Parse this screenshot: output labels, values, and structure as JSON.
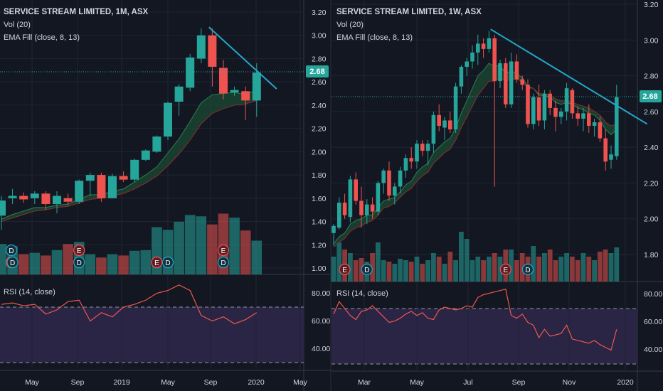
{
  "panels": [
    {
      "title": "SERVICE STREAM LIMITED, 1M, ASX",
      "vol_label": "Vol (20)",
      "ema_label": "EMA Fill (close, 8, 13)",
      "rsi_label": "RSI (14, close)",
      "price_label": "2.68",
      "price_ticks": [
        "3.20",
        "3.00",
        "2.80",
        "2.60",
        "2.40",
        "2.20",
        "2.00",
        "1.80",
        "1.60",
        "1.40",
        "1.20",
        "1.00"
      ],
      "rsi_ticks": [
        "80.00",
        "60.00",
        "40.00"
      ],
      "time_ticks": [
        "May",
        "Sep",
        "2019",
        "May",
        "Sep",
        "2020",
        "May"
      ]
    },
    {
      "title": "SERVICE STREAM LIMITED, 1W, ASX",
      "vol_label": "Vol (20)",
      "ema_label": "EMA Fill (close, 8, 13)",
      "rsi_label": "RSI (14, close)",
      "price_label": "2.68",
      "price_ticks": [
        "3.20",
        "3.00",
        "2.80",
        "2.60",
        "2.40",
        "2.20",
        "2.00",
        "1.80"
      ],
      "rsi_ticks": [
        "80.00",
        "60.00",
        "40.00"
      ],
      "time_ticks": [
        "Mar",
        "May",
        "Jul",
        "Sep",
        "Nov",
        "2020"
      ]
    }
  ],
  "colors": {
    "background": "#131722",
    "up": "#26a69a",
    "down": "#ef5350",
    "trendline": "#22a7c8",
    "rsi_line": "#f0584c",
    "rsi_band": "#2a2445",
    "price_label_bg": "#26a69a",
    "text": "#d1d4dc",
    "grid": "#1f2432"
  },
  "chart_data": [
    {
      "type": "candlestick",
      "title": "SERVICE STREAM LIMITED, 1M, ASX",
      "interval": "1M",
      "ylim": [
        0.9,
        3.25
      ],
      "candles": [
        {
          "o": 1.45,
          "h": 1.62,
          "l": 1.33,
          "c": 1.58
        },
        {
          "o": 1.6,
          "h": 1.68,
          "l": 1.55,
          "c": 1.62
        },
        {
          "o": 1.62,
          "h": 1.65,
          "l": 1.56,
          "c": 1.59
        },
        {
          "o": 1.6,
          "h": 1.66,
          "l": 1.55,
          "c": 1.64
        },
        {
          "o": 1.64,
          "h": 1.66,
          "l": 1.5,
          "c": 1.55
        },
        {
          "o": 1.55,
          "h": 1.66,
          "l": 1.47,
          "c": 1.62
        },
        {
          "o": 1.6,
          "h": 1.64,
          "l": 1.54,
          "c": 1.57
        },
        {
          "o": 1.57,
          "h": 1.76,
          "l": 1.55,
          "c": 1.75
        },
        {
          "o": 1.75,
          "h": 1.82,
          "l": 1.62,
          "c": 1.8
        },
        {
          "o": 1.8,
          "h": 1.82,
          "l": 1.57,
          "c": 1.6
        },
        {
          "o": 1.6,
          "h": 1.81,
          "l": 1.6,
          "c": 1.79
        },
        {
          "o": 1.79,
          "h": 1.83,
          "l": 1.74,
          "c": 1.76
        },
        {
          "o": 1.76,
          "h": 1.94,
          "l": 1.74,
          "c": 1.93
        },
        {
          "o": 1.93,
          "h": 2.02,
          "l": 1.92,
          "c": 2.01
        },
        {
          "o": 2.0,
          "h": 2.14,
          "l": 1.99,
          "c": 2.13
        },
        {
          "o": 2.13,
          "h": 2.43,
          "l": 2.1,
          "c": 2.42
        },
        {
          "o": 2.43,
          "h": 2.58,
          "l": 2.31,
          "c": 2.56
        },
        {
          "o": 2.55,
          "h": 2.84,
          "l": 2.52,
          "c": 2.81
        },
        {
          "o": 2.8,
          "h": 3.06,
          "l": 2.76,
          "c": 3.0
        },
        {
          "o": 3.0,
          "h": 3.06,
          "l": 2.56,
          "c": 2.73
        },
        {
          "o": 2.72,
          "h": 2.79,
          "l": 2.45,
          "c": 2.5
        },
        {
          "o": 2.51,
          "h": 2.56,
          "l": 2.48,
          "c": 2.53
        },
        {
          "o": 2.52,
          "h": 2.56,
          "l": 2.27,
          "c": 2.44
        },
        {
          "o": 2.44,
          "h": 2.76,
          "l": 2.3,
          "c": 2.68
        }
      ],
      "volume": [
        0.45,
        0.42,
        0.3,
        0.32,
        0.28,
        0.36,
        0.45,
        0.48,
        0.3,
        0.25,
        0.3,
        0.28,
        0.35,
        0.36,
        0.7,
        0.66,
        0.78,
        0.88,
        0.86,
        0.74,
        0.9,
        0.84,
        0.65,
        0.5
      ],
      "ema_fast": [
        1.42,
        1.46,
        1.49,
        1.52,
        1.52,
        1.54,
        1.55,
        1.59,
        1.63,
        1.63,
        1.66,
        1.68,
        1.74,
        1.8,
        1.87,
        1.99,
        2.11,
        2.26,
        2.42,
        2.49,
        2.5,
        2.51,
        2.49,
        2.53
      ],
      "ema_slow": [
        1.4,
        1.43,
        1.46,
        1.49,
        1.5,
        1.52,
        1.53,
        1.56,
        1.59,
        1.6,
        1.62,
        1.64,
        1.68,
        1.73,
        1.79,
        1.88,
        1.98,
        2.1,
        2.24,
        2.33,
        2.37,
        2.4,
        2.41,
        2.44
      ],
      "trendline": [
        [
          18.7,
          3.07
        ],
        [
          24.8,
          2.54
        ]
      ],
      "event_markers": [
        {
          "x": 0,
          "labels": [
            "E",
            "D"
          ]
        },
        {
          "x": 1,
          "labels": [
            "D"
          ]
        },
        {
          "x": 7,
          "labels": [
            "D",
            "E"
          ]
        },
        {
          "x": 14,
          "labels": [
            "E"
          ]
        },
        {
          "x": 15,
          "labels": [
            "D"
          ]
        },
        {
          "x": 20,
          "labels": [
            "D",
            "E"
          ]
        }
      ],
      "rsi": [
        72,
        73,
        71,
        72,
        65,
        68,
        74,
        75,
        60,
        66,
        63,
        70,
        72,
        75,
        80,
        82,
        86,
        82,
        64,
        60,
        63,
        58,
        61,
        66
      ],
      "rsi_levels": [
        30,
        70
      ],
      "x_ticks": [
        "May",
        "Sep",
        "2019",
        "May",
        "Sep",
        "2020",
        "May"
      ]
    },
    {
      "type": "candlestick",
      "title": "SERVICE STREAM LIMITED, 1W, ASX",
      "interval": "1W",
      "ylim": [
        1.67,
        3.22
      ],
      "candles": [
        {
          "o": 1.92,
          "h": 1.97,
          "l": 1.85,
          "c": 1.96
        },
        {
          "o": 1.95,
          "h": 2.12,
          "l": 1.94,
          "c": 2.09
        },
        {
          "o": 2.09,
          "h": 2.14,
          "l": 2.0,
          "c": 2.02
        },
        {
          "o": 2.01,
          "h": 2.24,
          "l": 1.98,
          "c": 2.22
        },
        {
          "o": 2.22,
          "h": 2.26,
          "l": 2.08,
          "c": 2.1
        },
        {
          "o": 2.1,
          "h": 2.18,
          "l": 1.95,
          "c": 2.02
        },
        {
          "o": 2.02,
          "h": 2.11,
          "l": 1.97,
          "c": 2.08
        },
        {
          "o": 2.08,
          "h": 2.12,
          "l": 2.0,
          "c": 2.04
        },
        {
          "o": 2.04,
          "h": 2.21,
          "l": 2.02,
          "c": 2.2
        },
        {
          "o": 2.2,
          "h": 2.28,
          "l": 2.14,
          "c": 2.27
        },
        {
          "o": 2.27,
          "h": 2.32,
          "l": 2.1,
          "c": 2.13
        },
        {
          "o": 2.13,
          "h": 2.2,
          "l": 2.08,
          "c": 2.18
        },
        {
          "o": 2.18,
          "h": 2.29,
          "l": 2.14,
          "c": 2.27
        },
        {
          "o": 2.27,
          "h": 2.36,
          "l": 2.23,
          "c": 2.34
        },
        {
          "o": 2.34,
          "h": 2.4,
          "l": 2.28,
          "c": 2.32
        },
        {
          "o": 2.32,
          "h": 2.44,
          "l": 2.28,
          "c": 2.42
        },
        {
          "o": 2.42,
          "h": 2.44,
          "l": 2.35,
          "c": 2.38
        },
        {
          "o": 2.38,
          "h": 2.44,
          "l": 2.3,
          "c": 2.42
        },
        {
          "o": 2.42,
          "h": 2.6,
          "l": 2.37,
          "c": 2.58
        },
        {
          "o": 2.58,
          "h": 2.64,
          "l": 2.49,
          "c": 2.52
        },
        {
          "o": 2.51,
          "h": 2.57,
          "l": 2.44,
          "c": 2.55
        },
        {
          "o": 2.55,
          "h": 2.6,
          "l": 2.48,
          "c": 2.5
        },
        {
          "o": 2.5,
          "h": 2.76,
          "l": 2.48,
          "c": 2.74
        },
        {
          "o": 2.74,
          "h": 2.86,
          "l": 2.7,
          "c": 2.85
        },
        {
          "o": 2.85,
          "h": 2.9,
          "l": 2.8,
          "c": 2.88
        },
        {
          "o": 2.88,
          "h": 2.97,
          "l": 2.84,
          "c": 2.93
        },
        {
          "o": 2.93,
          "h": 3.03,
          "l": 2.86,
          "c": 2.98
        },
        {
          "o": 2.98,
          "h": 3.01,
          "l": 2.9,
          "c": 2.95
        },
        {
          "o": 2.95,
          "h": 3.05,
          "l": 2.93,
          "c": 3.01
        },
        {
          "o": 3.01,
          "h": 3.03,
          "l": 2.18,
          "c": 2.77
        },
        {
          "o": 2.77,
          "h": 2.89,
          "l": 2.73,
          "c": 2.87
        },
        {
          "o": 2.87,
          "h": 2.9,
          "l": 2.62,
          "c": 2.64
        },
        {
          "o": 2.64,
          "h": 2.93,
          "l": 2.62,
          "c": 2.88
        },
        {
          "o": 2.88,
          "h": 2.92,
          "l": 2.76,
          "c": 2.78
        },
        {
          "o": 2.78,
          "h": 2.8,
          "l": 2.72,
          "c": 2.75
        },
        {
          "o": 2.75,
          "h": 2.78,
          "l": 2.51,
          "c": 2.53
        },
        {
          "o": 2.53,
          "h": 2.7,
          "l": 2.5,
          "c": 2.68
        },
        {
          "o": 2.68,
          "h": 2.75,
          "l": 2.52,
          "c": 2.55
        },
        {
          "o": 2.55,
          "h": 2.72,
          "l": 2.5,
          "c": 2.7
        },
        {
          "o": 2.7,
          "h": 2.72,
          "l": 2.58,
          "c": 2.62
        },
        {
          "o": 2.62,
          "h": 2.66,
          "l": 2.49,
          "c": 2.57
        },
        {
          "o": 2.57,
          "h": 2.62,
          "l": 2.53,
          "c": 2.6
        },
        {
          "o": 2.6,
          "h": 2.76,
          "l": 2.55,
          "c": 2.73
        },
        {
          "o": 2.72,
          "h": 2.73,
          "l": 2.56,
          "c": 2.59
        },
        {
          "o": 2.59,
          "h": 2.63,
          "l": 2.52,
          "c": 2.56
        },
        {
          "o": 2.56,
          "h": 2.62,
          "l": 2.49,
          "c": 2.59
        },
        {
          "o": 2.59,
          "h": 2.64,
          "l": 2.48,
          "c": 2.52
        },
        {
          "o": 2.52,
          "h": 2.56,
          "l": 2.46,
          "c": 2.54
        },
        {
          "o": 2.54,
          "h": 2.57,
          "l": 2.43,
          "c": 2.45
        },
        {
          "o": 2.45,
          "h": 2.5,
          "l": 2.27,
          "c": 2.32
        },
        {
          "o": 2.33,
          "h": 2.41,
          "l": 2.28,
          "c": 2.36
        },
        {
          "o": 2.35,
          "h": 2.75,
          "l": 2.33,
          "c": 2.68
        }
      ],
      "volume": [
        0.35,
        0.55,
        0.45,
        0.4,
        0.3,
        0.33,
        0.28,
        0.4,
        0.55,
        0.3,
        0.28,
        0.25,
        0.32,
        0.3,
        0.28,
        0.35,
        0.25,
        0.3,
        0.4,
        0.35,
        0.25,
        0.42,
        0.3,
        0.7,
        0.6,
        0.3,
        0.35,
        0.3,
        0.35,
        0.4,
        0.35,
        0.45,
        0.45,
        0.3,
        0.4,
        0.35,
        0.5,
        0.35,
        0.4,
        0.45,
        0.3,
        0.35,
        0.4,
        0.35,
        0.3,
        0.4,
        0.35,
        0.3,
        0.42,
        0.45,
        0.4,
        0.48
      ],
      "ema_fast": [
        1.86,
        1.9,
        1.92,
        1.97,
        1.99,
        2.0,
        2.02,
        2.02,
        2.06,
        2.1,
        2.11,
        2.12,
        2.15,
        2.19,
        2.21,
        2.26,
        2.29,
        2.31,
        2.37,
        2.4,
        2.43,
        2.45,
        2.51,
        2.59,
        2.66,
        2.73,
        2.8,
        2.83,
        2.87,
        2.85,
        2.86,
        2.81,
        2.83,
        2.81,
        2.79,
        2.74,
        2.73,
        2.69,
        2.69,
        2.68,
        2.65,
        2.64,
        2.65,
        2.64,
        2.62,
        2.61,
        2.59,
        2.58,
        2.55,
        2.5,
        2.47,
        2.5
      ],
      "ema_slow": [
        1.84,
        1.87,
        1.89,
        1.93,
        1.95,
        1.96,
        1.98,
        1.99,
        2.02,
        2.06,
        2.07,
        2.09,
        2.12,
        2.15,
        2.17,
        2.21,
        2.24,
        2.26,
        2.31,
        2.34,
        2.37,
        2.39,
        2.44,
        2.51,
        2.57,
        2.63,
        2.69,
        2.73,
        2.77,
        2.77,
        2.79,
        2.77,
        2.78,
        2.78,
        2.77,
        2.73,
        2.73,
        2.7,
        2.7,
        2.69,
        2.67,
        2.66,
        2.66,
        2.65,
        2.64,
        2.63,
        2.62,
        2.6,
        2.58,
        2.54,
        2.52,
        2.53
      ],
      "trendline": [
        [
          28.3,
          3.06
        ],
        [
          56.5,
          2.53
        ]
      ],
      "event_markers": [
        {
          "x": 2,
          "labels": [
            "E"
          ]
        },
        {
          "x": 6,
          "labels": [
            "D"
          ]
        },
        {
          "x": 31,
          "labels": [
            "E"
          ]
        },
        {
          "x": 35,
          "labels": [
            "D"
          ]
        }
      ],
      "rsi": [
        66,
        75,
        70,
        65,
        62,
        68,
        69,
        72,
        68,
        64,
        60,
        61,
        63,
        66,
        68,
        65,
        67,
        63,
        62,
        69,
        71,
        70,
        69,
        70,
        72,
        71,
        78,
        80,
        81,
        82,
        83,
        84,
        65,
        63,
        66,
        60,
        58,
        49,
        55,
        50,
        51,
        52,
        58,
        48,
        47,
        46,
        45,
        47,
        44,
        42,
        40,
        55
      ],
      "rsi_levels": [
        30,
        70
      ],
      "x_ticks": [
        "Mar",
        "May",
        "Jul",
        "Sep",
        "Nov",
        "2020"
      ]
    }
  ]
}
